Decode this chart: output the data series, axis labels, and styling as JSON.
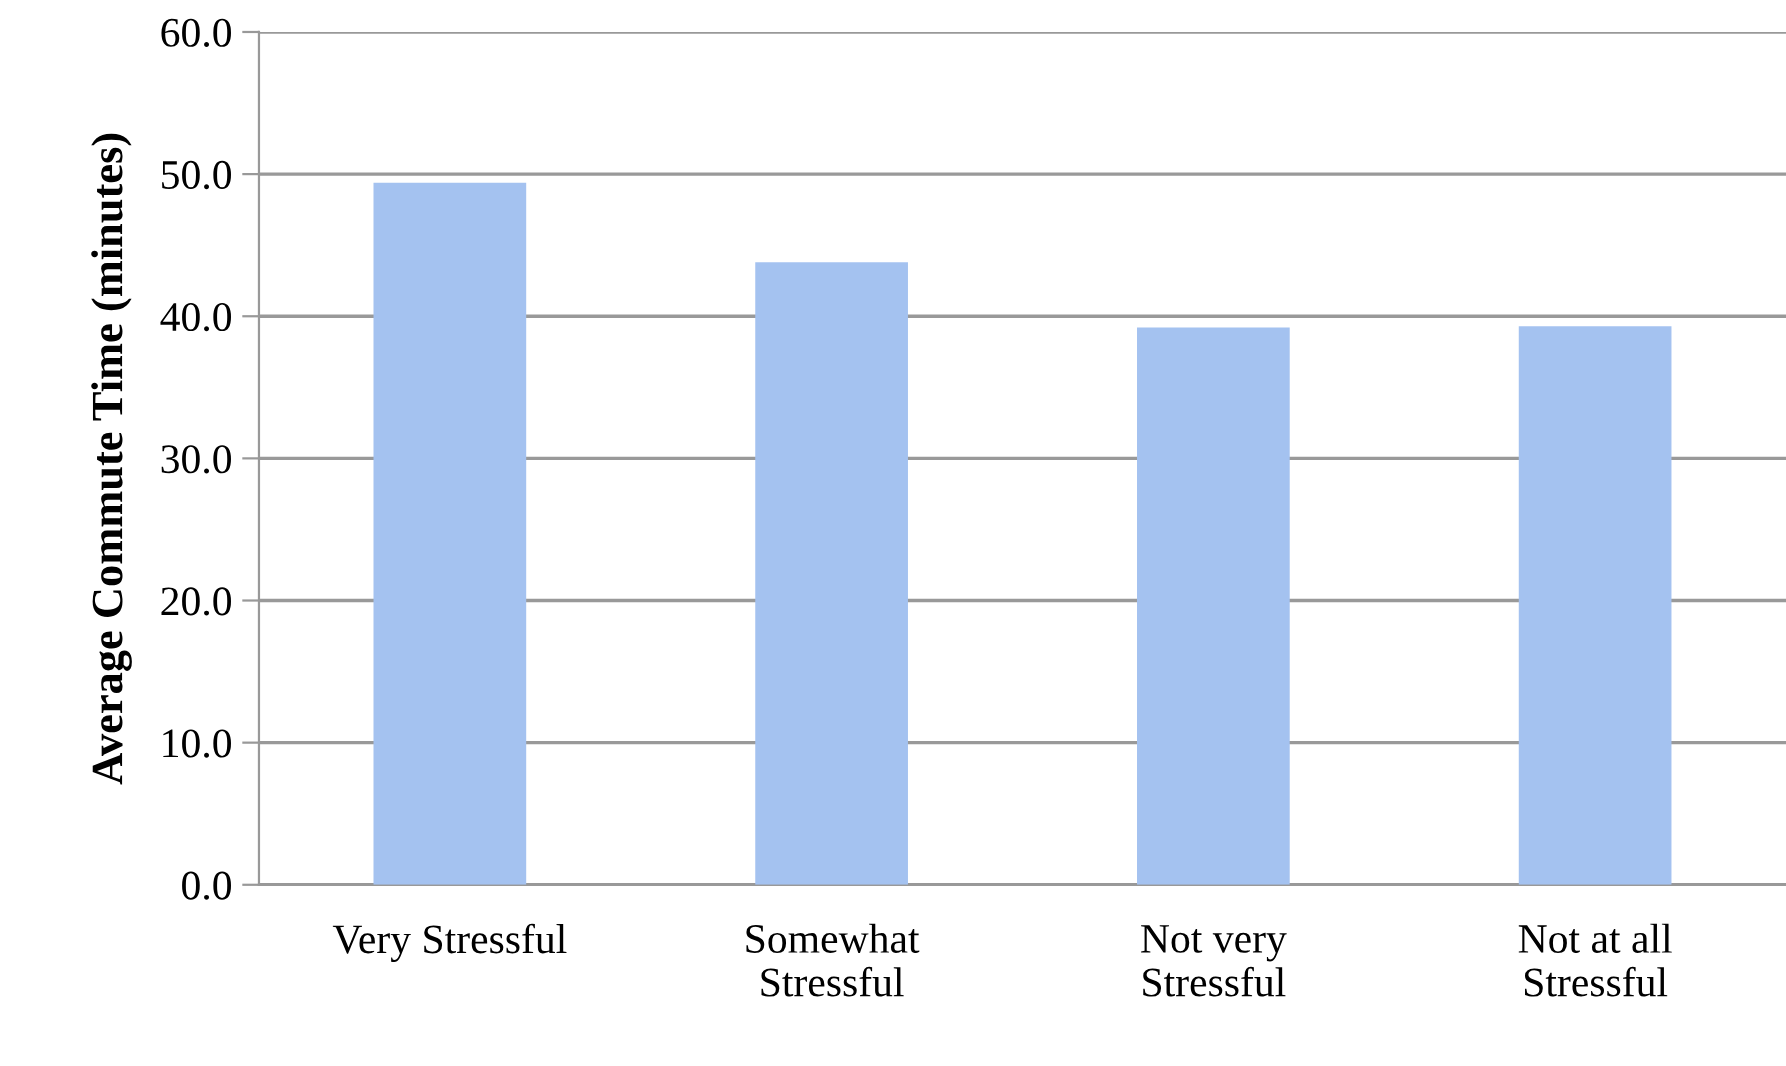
{
  "chart_data": {
    "type": "bar",
    "ylabel": "Average Commute Time (minutes)",
    "categories": [
      "Very Stressful",
      "Somewhat\nStressful",
      "Not very\nStressful",
      "Not at all\nStressful"
    ],
    "values": [
      49.4,
      43.8,
      39.2,
      39.3
    ],
    "color": "#a4c2f0",
    "ylim": [
      0,
      60
    ],
    "yticks": [
      {
        "value": 0,
        "label": "0.0"
      },
      {
        "value": 10,
        "label": "10.0"
      },
      {
        "value": 20,
        "label": "20.0"
      },
      {
        "value": 30,
        "label": "30.0"
      },
      {
        "value": 40,
        "label": "40.0"
      },
      {
        "value": 50,
        "label": "50.0"
      },
      {
        "value": 60,
        "label": "60.0"
      }
    ],
    "grid": "y",
    "legend": false
  }
}
